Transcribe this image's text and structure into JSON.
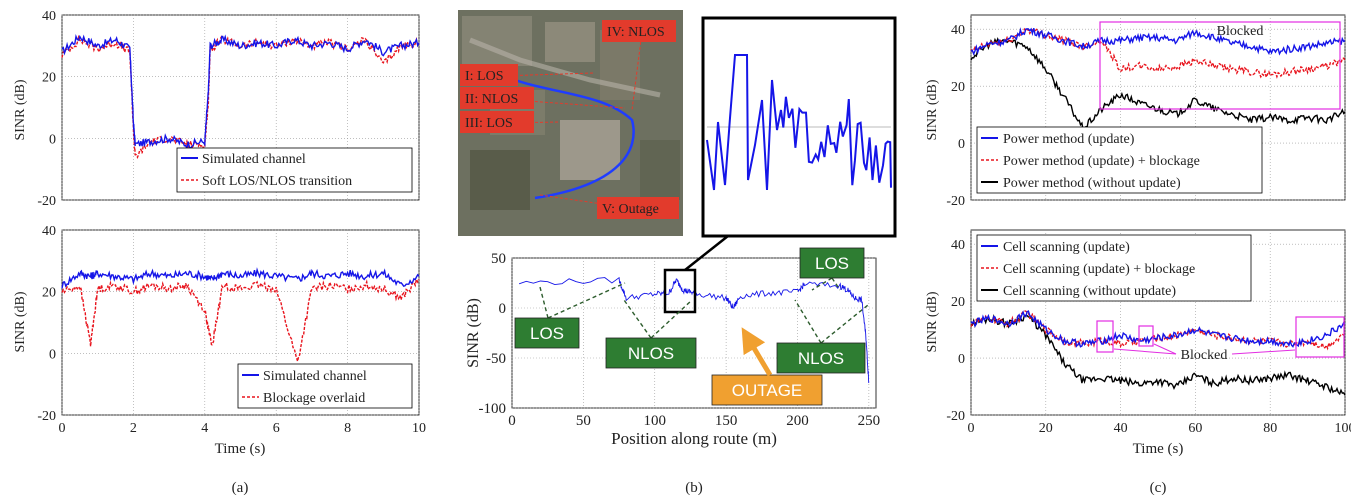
{
  "panels": [
    {
      "id": "a-top",
      "caption": "",
      "xlim": [
        0,
        10
      ],
      "ylim": [
        -20,
        40
      ],
      "xticks": [
        0,
        2,
        4,
        6,
        8,
        10
      ],
      "yticks": [
        -20,
        0,
        20,
        40
      ],
      "show_xticklabels": false,
      "xlabel": "",
      "ylabel": "SINR (dB)",
      "legend": {
        "position": "bottom-right",
        "entries": [
          {
            "label": "Simulated channel",
            "color": "#1515e8",
            "dash": ""
          },
          {
            "label": "Soft LOS/NLOS transition",
            "color": "#e8141d",
            "dash": "3,2"
          }
        ]
      }
    },
    {
      "id": "a-bottom",
      "caption": "(a)",
      "xlim": [
        0,
        10
      ],
      "ylim": [
        -20,
        40
      ],
      "xticks": [
        0,
        2,
        4,
        6,
        8,
        10
      ],
      "yticks": [
        -20,
        0,
        20,
        40
      ],
      "show_xticklabels": true,
      "xlabel": "Time (s)",
      "ylabel": "SINR (dB)",
      "legend": {
        "position": "bottom-right",
        "entries": [
          {
            "label": "Simulated channel",
            "color": "#1515e8",
            "dash": ""
          },
          {
            "label": "Blockage overlaid",
            "color": "#e8141d",
            "dash": "3,2"
          }
        ]
      }
    },
    {
      "id": "b-main",
      "caption": "(b)",
      "xlim": [
        0,
        255
      ],
      "ylim": [
        -100,
        50
      ],
      "xticks": [
        0,
        50,
        100,
        150,
        200,
        250
      ],
      "yticks": [
        -100,
        -50,
        0,
        50
      ],
      "show_xticklabels": true,
      "xlabel": "Position along route (m)",
      "ylabel": "SINR (dB)",
      "legend": null
    },
    {
      "id": "c-top",
      "caption": "",
      "xlim": [
        0,
        100
      ],
      "ylim": [
        -20,
        45
      ],
      "xticks": [
        0,
        20,
        40,
        60,
        80,
        100
      ],
      "yticks": [
        -20,
        0,
        20,
        40
      ],
      "show_xticklabels": false,
      "xlabel": "",
      "ylabel": "SINR (dB)",
      "legend": {
        "position": "bottom-left",
        "entries": [
          {
            "label": "Power method (update)",
            "color": "#1515e8",
            "dash": ""
          },
          {
            "label": "Power method (update) + blockage",
            "color": "#e8141d",
            "dash": "3,2"
          },
          {
            "label": "Power method (without update)",
            "color": "#000000",
            "dash": ""
          }
        ]
      }
    },
    {
      "id": "c-bottom",
      "caption": "(c)",
      "xlim": [
        0,
        100
      ],
      "ylim": [
        -20,
        45
      ],
      "xticks": [
        0,
        20,
        40,
        60,
        80,
        100
      ],
      "yticks": [
        -20,
        0,
        20,
        40
      ],
      "show_xticklabels": true,
      "xlabel": "Time (s)",
      "ylabel": "SINR (dB)",
      "legend": {
        "position": "top-left",
        "entries": [
          {
            "label": "Cell scanning (update)",
            "color": "#1515e8",
            "dash": ""
          },
          {
            "label": "Cell scanning (update) + blockage",
            "color": "#e8141d",
            "dash": "3,2"
          },
          {
            "label": "Cell scanning (without update)",
            "color": "#000000",
            "dash": ""
          }
        ]
      }
    }
  ],
  "chart_data": [
    {
      "type": "line",
      "panel": "a-top",
      "xlabel": "",
      "ylabel": "SINR (dB)",
      "x": [
        0,
        0.5,
        1,
        1.5,
        1.9,
        2.0,
        2.05,
        2.5,
        3,
        3.5,
        4.0,
        4.1,
        4.15,
        4.5,
        5,
        5.5,
        6,
        6.5,
        7,
        7.5,
        8,
        8.5,
        9,
        9.5,
        10
      ],
      "series": [
        {
          "name": "Simulated channel",
          "values": [
            28,
            33,
            30,
            32,
            29,
            5,
            -2,
            -1,
            0,
            -2,
            -1,
            15,
            30,
            32,
            30,
            31,
            30,
            32,
            30,
            31,
            29,
            32,
            28,
            30,
            31
          ]
        },
        {
          "name": "Soft LOS/NLOS transition",
          "values": [
            27,
            32,
            29,
            31,
            28,
            3,
            -6,
            -1,
            0,
            -2,
            -2,
            12,
            29,
            32,
            30,
            31,
            30,
            32,
            30,
            31,
            29,
            32,
            24,
            30,
            31
          ]
        }
      ]
    },
    {
      "type": "line",
      "panel": "a-bottom",
      "xlabel": "Time (s)",
      "ylabel": "SINR (dB)",
      "x": [
        0,
        0.5,
        0.8,
        1,
        1.5,
        2,
        2.5,
        3,
        3.5,
        4,
        4.2,
        4.5,
        5,
        5.5,
        6,
        6.6,
        7,
        7.5,
        8,
        8.5,
        9,
        9.5,
        10
      ],
      "series": [
        {
          "name": "Simulated channel",
          "values": [
            22,
            26,
            25,
            26,
            25,
            24,
            26,
            25,
            26,
            25,
            24,
            26,
            25,
            26,
            25,
            24,
            26,
            25,
            26,
            25,
            26,
            22,
            25
          ]
        },
        {
          "name": "Blockage overlaid",
          "values": [
            20,
            22,
            3,
            21,
            22,
            20,
            22,
            21,
            22,
            14,
            2,
            22,
            21,
            22,
            21,
            -3,
            21,
            22,
            21,
            22,
            21,
            18,
            24
          ]
        }
      ]
    },
    {
      "type": "line",
      "panel": "b-main",
      "xlabel": "Position along route (m)",
      "ylabel": "SINR (dB)",
      "x": [
        5,
        75,
        80,
        100,
        110,
        115,
        120,
        125,
        130,
        150,
        155,
        160,
        180,
        200,
        205,
        230,
        235,
        240,
        245,
        248,
        250
      ],
      "series": [
        {
          "name": "",
          "values": [
            25,
            28,
            10,
            14,
            15,
            28,
            18,
            16,
            14,
            10,
            0,
            12,
            15,
            16,
            24,
            22,
            18,
            10,
            8,
            -30,
            -75
          ]
        }
      ],
      "annotations": [
        "LOS",
        "LOS",
        "NLOS",
        "NLOS",
        "OUTAGE"
      ]
    },
    {
      "type": "line",
      "panel": "c-top",
      "xlabel": "",
      "ylabel": "SINR (dB)",
      "x": [
        0,
        5,
        10,
        15,
        20,
        25,
        30,
        35,
        40,
        45,
        50,
        55,
        60,
        65,
        70,
        75,
        80,
        85,
        90,
        95,
        100
      ],
      "series": [
        {
          "name": "Power method (update)",
          "values": [
            32,
            35,
            36,
            40,
            38,
            36,
            34,
            36,
            36,
            37,
            37,
            36,
            39,
            37,
            35,
            34,
            32,
            33,
            34,
            35,
            36
          ]
        },
        {
          "name": "Power method (update) + blockage",
          "values": [
            32,
            35,
            36,
            40,
            38,
            36,
            34,
            36,
            26,
            27,
            26,
            27,
            29,
            27,
            26,
            25,
            24,
            25,
            26,
            27,
            29
          ]
        },
        {
          "name": "Power method (without update)",
          "values": [
            30,
            35,
            36,
            34,
            26,
            16,
            5,
            12,
            17,
            14,
            12,
            10,
            15,
            12,
            10,
            8,
            9,
            8,
            9,
            8,
            11
          ]
        }
      ],
      "annotations": [
        "Blocked"
      ]
    },
    {
      "type": "line",
      "panel": "c-bottom",
      "xlabel": "Time (s)",
      "ylabel": "SINR (dB)",
      "x": [
        0,
        5,
        10,
        15,
        20,
        25,
        30,
        35,
        40,
        45,
        50,
        55,
        60,
        65,
        70,
        75,
        80,
        85,
        90,
        95,
        100
      ],
      "series": [
        {
          "name": "Cell scanning (update)",
          "values": [
            12,
            14,
            12,
            16,
            10,
            6,
            5,
            6,
            8,
            6,
            7,
            8,
            10,
            8,
            7,
            6,
            6,
            5,
            6,
            8,
            12
          ]
        },
        {
          "name": "Cell scanning (update) + blockage",
          "values": [
            12,
            14,
            12,
            16,
            10,
            6,
            5,
            6,
            5,
            6,
            7,
            8,
            10,
            8,
            7,
            6,
            6,
            5,
            6,
            4,
            9
          ]
        },
        {
          "name": "Cell scanning (without update)",
          "values": [
            12,
            14,
            12,
            15,
            8,
            -2,
            -8,
            -7,
            -8,
            -9,
            -8,
            -10,
            -6,
            -9,
            -7,
            -8,
            -7,
            -6,
            -8,
            -10,
            -13
          ]
        }
      ],
      "annotations": [
        "Blocked"
      ]
    }
  ],
  "map": {
    "labels": [
      "I: LOS",
      "II: NLOS",
      "III: LOS",
      "IV: NLOS",
      "V: Outage"
    ]
  },
  "colors": {
    "blue": "#1515e8",
    "red": "#e8141d",
    "purple": "#7b1f78",
    "black": "#000000",
    "magenta": "#e22de2",
    "green": "#2e7d32",
    "orange": "#f0a030"
  }
}
